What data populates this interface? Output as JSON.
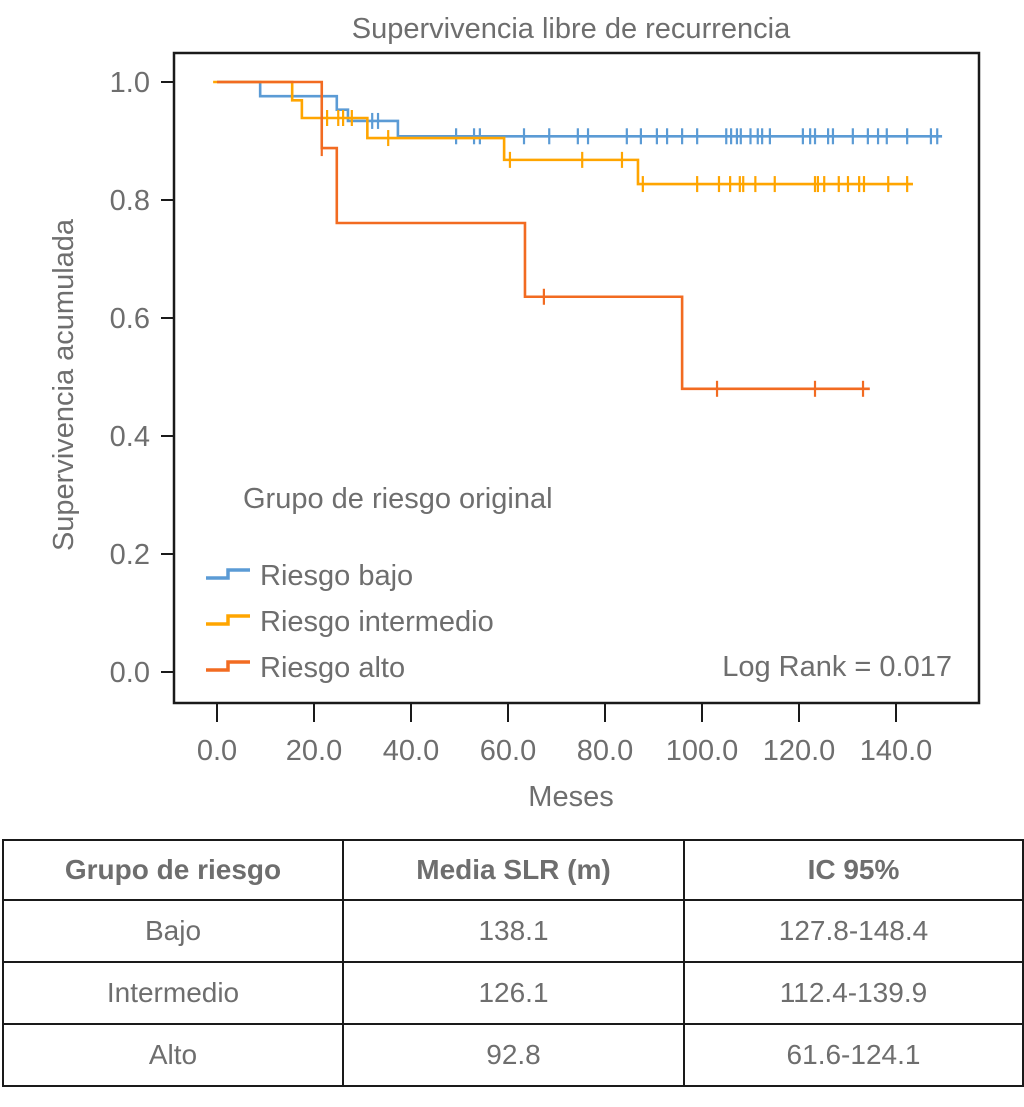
{
  "chart_data": {
    "type": "line",
    "subtype": "kaplan-meier-step",
    "title": "Supervivencia libre de recurrencia",
    "xlabel": "Meses",
    "ylabel": "Supervivencia acumulada",
    "xlim": [
      0,
      150
    ],
    "ylim": [
      0,
      1.0
    ],
    "x_ticks": [
      0,
      20,
      40,
      60,
      80,
      100,
      120,
      140
    ],
    "x_tick_labels": [
      "0.0",
      "20.0",
      "40.0",
      "60.0",
      "80.0",
      "100.0",
      "120.0",
      "140.0"
    ],
    "y_ticks": [
      0,
      0.2,
      0.4,
      0.6,
      0.8,
      1.0
    ],
    "y_tick_labels": [
      "0.0",
      "0.2",
      "0.4",
      "0.6",
      "0.8",
      "1.0"
    ],
    "grid": false,
    "legend": {
      "title": "Grupo de riesgo original",
      "placement": "bottom-left"
    },
    "annotation": "Log Rank = 0.017",
    "series": [
      {
        "name": "Riesgo bajo",
        "color": "#5b9bd5",
        "start": 0,
        "end": 149.5,
        "steps": [
          [
            8.9,
            0.976
          ],
          [
            24.7,
            0.953
          ],
          [
            27.0,
            0.934
          ],
          [
            37.3,
            0.908
          ]
        ],
        "censored": [
          32.0,
          33.2,
          49.3,
          53.0,
          54.2,
          63.3,
          68.5,
          74.4,
          76.5,
          84.5,
          87.4,
          90.7,
          92.8,
          95.9,
          99.0,
          105.0,
          106.0,
          107.2,
          108.0,
          110.0,
          111.5,
          112.4,
          114.0,
          120.8,
          122.3,
          123.3,
          126.0,
          127.0,
          131.1,
          134.2,
          136.3,
          138.1,
          142.3,
          147.2,
          148.5
        ]
      },
      {
        "name": "Riesgo intermedio",
        "color": "#ffa500",
        "start": -0.8,
        "end": 143.5,
        "steps": [
          [
            15.5,
            0.969
          ],
          [
            17.5,
            0.939
          ],
          [
            31.0,
            0.905
          ],
          [
            59.2,
            0.868
          ],
          [
            86.8,
            0.827
          ]
        ],
        "censored": [
          22.7,
          25.0,
          26.0,
          27.8,
          35.3,
          60.4,
          75.3,
          83.5,
          87.8,
          99.0,
          103.5,
          105.8,
          107.8,
          108.5,
          111.0,
          115.0,
          123.3,
          123.9,
          125.2,
          128.2,
          130.1,
          132.4,
          133.4,
          138.4,
          142.3
        ]
      },
      {
        "name": "Riesgo alto",
        "color": "#f26b21",
        "start": 0,
        "end": 134.6,
        "steps": [
          [
            21.6,
            0.888
          ],
          [
            24.7,
            0.761
          ],
          [
            63.5,
            0.636
          ],
          [
            95.9,
            0.48
          ]
        ],
        "censored": [
          21.6,
          67.4,
          103.1,
          123.3,
          133.2
        ]
      }
    ]
  },
  "table": {
    "headers": [
      "Grupo de riesgo",
      "Media SLR (m)",
      "IC 95%"
    ],
    "rows": [
      [
        "Bajo",
        "138.1",
        "127.8-148.4"
      ],
      [
        "Intermedio",
        "126.1",
        "112.4-139.9"
      ],
      [
        "Alto",
        "92.8",
        "61.6-124.1"
      ]
    ]
  }
}
